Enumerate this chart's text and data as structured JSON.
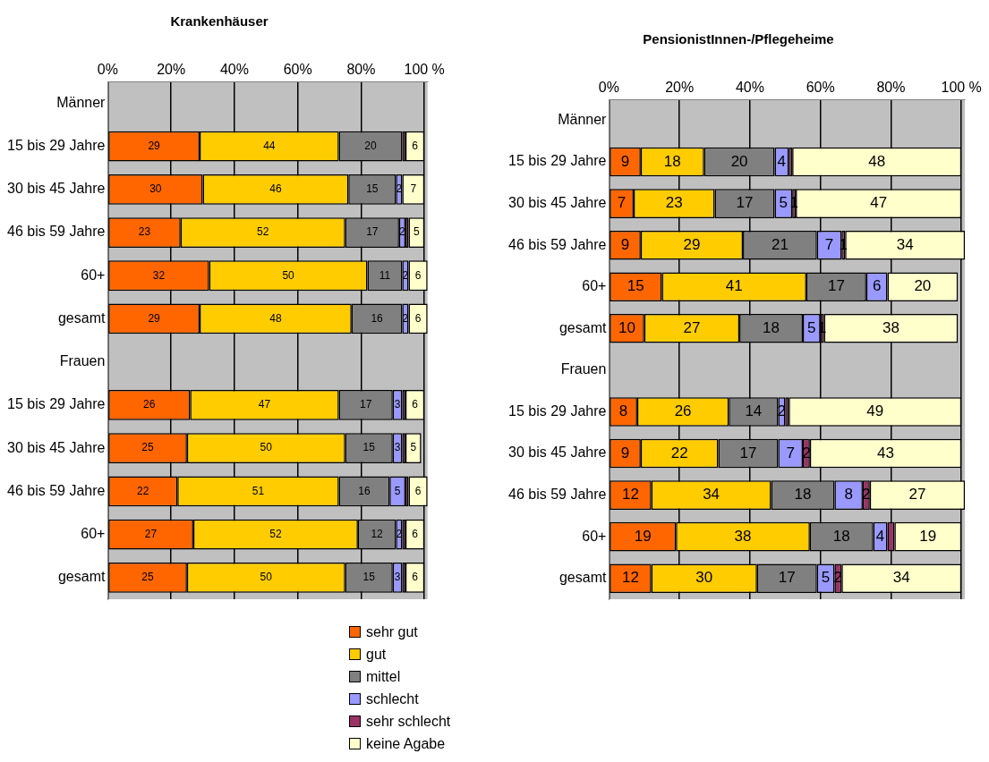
{
  "chart_data": [
    {
      "type": "bar",
      "title": "Krankenhäuser",
      "orientation": "horizontal",
      "stacked": true,
      "grid": "x",
      "legend": "bottom",
      "categories": [
        "Männer",
        "15 bis 29 Jahre",
        "30 bis 45 Jahre",
        "46 bis 59 Jahre",
        "60+",
        "gesamt",
        "Frauen",
        "15 bis 29 Jahre",
        "30 bis 45 Jahre",
        "46 bis 59 Jahre",
        "60+",
        "gesamt"
      ],
      "xlim": [
        0,
        101
      ],
      "xticks": [
        {
          "value": 0,
          "label": "0%"
        },
        {
          "value": 20,
          "label": "20%"
        },
        {
          "value": 40,
          "label": "40%"
        },
        {
          "value": 60,
          "label": "60%"
        },
        {
          "value": 80,
          "label": "80%"
        },
        {
          "value": 100,
          "label": "100 %"
        }
      ],
      "series": [
        {
          "name": "sehr gut",
          "color": "#ff6600",
          "values": [
            null,
            29,
            30,
            23,
            32,
            29,
            null,
            26,
            25,
            22,
            27,
            25
          ],
          "value_labels": [
            null,
            "29",
            "30",
            "23",
            "32",
            "29",
            null,
            "26",
            "25",
            "22",
            "27",
            "25"
          ]
        },
        {
          "name": "gut",
          "color": "#ffcc00",
          "values": [
            null,
            44,
            46,
            52,
            50,
            48,
            null,
            47,
            50,
            51,
            52,
            50
          ],
          "value_labels": [
            null,
            "44",
            "46",
            "52",
            "50",
            "48",
            null,
            "47",
            "50",
            "51",
            "52",
            "50"
          ]
        },
        {
          "name": "mittel",
          "color": "#808080",
          "values": [
            null,
            20,
            15,
            17,
            11,
            16,
            null,
            17,
            15,
            16,
            12,
            15
          ],
          "value_labels": [
            null,
            "20",
            "15",
            "17",
            "11",
            "16",
            null,
            "17",
            "15",
            "16",
            "12",
            "15"
          ]
        },
        {
          "name": "schlecht",
          "color": "#9999ff",
          "values": [
            null,
            null,
            2,
            2,
            2,
            2,
            null,
            3,
            3,
            5,
            2,
            3
          ],
          "value_labels": [
            null,
            null,
            "2",
            "2",
            "2",
            "2",
            null,
            "3",
            "3",
            "5",
            "2",
            "3"
          ]
        },
        {
          "name": "sehr schlecht",
          "color": "#993366",
          "values": [
            null,
            1,
            null,
            1,
            null,
            null,
            null,
            1,
            1,
            1,
            1,
            1
          ],
          "value_labels": [
            null,
            null,
            null,
            null,
            null,
            null,
            null,
            null,
            null,
            null,
            null,
            null
          ]
        },
        {
          "name": "keine Agabe",
          "color": "#ffffcc",
          "values": [
            null,
            6,
            7,
            5,
            6,
            6,
            null,
            6,
            5,
            6,
            6,
            6
          ],
          "value_labels": [
            null,
            "6",
            "7",
            "5",
            "6",
            "6",
            null,
            "6",
            "5",
            "6",
            "6",
            "6"
          ]
        }
      ]
    },
    {
      "type": "bar",
      "title": "PensionistInnen-/Pflegeheime",
      "orientation": "horizontal",
      "stacked": true,
      "grid": "x",
      "categories": [
        "Männer",
        "15 bis 29 Jahre",
        "30 bis 45 Jahre",
        "46 bis 59 Jahre",
        "60+",
        "gesamt",
        "Frauen",
        "15 bis 29 Jahre",
        "30 bis 45 Jahre",
        "46 bis 59 Jahre",
        "60+",
        "gesamt"
      ],
      "xlim": [
        0,
        101
      ],
      "xticks": [
        {
          "value": 0,
          "label": "0%"
        },
        {
          "value": 20,
          "label": "20%"
        },
        {
          "value": 40,
          "label": "40%"
        },
        {
          "value": 60,
          "label": "60%"
        },
        {
          "value": 80,
          "label": "80%"
        },
        {
          "value": 100,
          "label": "100 %"
        }
      ],
      "series": [
        {
          "color": "#ff6600",
          "values": [
            null,
            9,
            7,
            9,
            15,
            10,
            null,
            8,
            9,
            12,
            19,
            12
          ],
          "value_labels": [
            null,
            "9",
            "7",
            "9",
            "15",
            "10",
            null,
            "8",
            "9",
            "12",
            "19",
            "12"
          ]
        },
        {
          "color": "#ffcc00",
          "values": [
            null,
            18,
            23,
            29,
            41,
            27,
            null,
            26,
            22,
            34,
            38,
            30
          ],
          "value_labels": [
            null,
            "18",
            "23",
            "29",
            "41",
            "27",
            null,
            "26",
            "22",
            "34",
            "38",
            "30"
          ]
        },
        {
          "color": "#808080",
          "values": [
            null,
            20,
            17,
            21,
            17,
            18,
            null,
            14,
            17,
            18,
            18,
            17
          ],
          "value_labels": [
            null,
            "20",
            "17",
            "21",
            "17",
            "18",
            null,
            "14",
            "17",
            "18",
            "18",
            "17"
          ]
        },
        {
          "color": "#9999ff",
          "values": [
            null,
            4,
            5,
            7,
            6,
            5,
            null,
            2,
            7,
            8,
            4,
            5
          ],
          "value_labels": [
            null,
            "4",
            "5",
            "7",
            "6",
            "5",
            null,
            "2",
            "7",
            "8",
            "4",
            "5"
          ]
        },
        {
          "color": "#993366",
          "values": [
            null,
            1,
            1,
            1,
            null,
            1,
            null,
            1,
            2,
            2,
            2,
            2
          ],
          "value_labels": [
            null,
            null,
            "1",
            "1",
            null,
            "1",
            null,
            null,
            "2",
            "2",
            null,
            "2"
          ]
        },
        {
          "color": "#ffffcc",
          "values": [
            null,
            48,
            47,
            34,
            20,
            38,
            null,
            49,
            43,
            27,
            19,
            34
          ],
          "value_labels": [
            null,
            "48",
            "47",
            "34",
            "20",
            "38",
            null,
            "49",
            "43",
            "27",
            "19",
            "34"
          ]
        }
      ]
    }
  ]
}
